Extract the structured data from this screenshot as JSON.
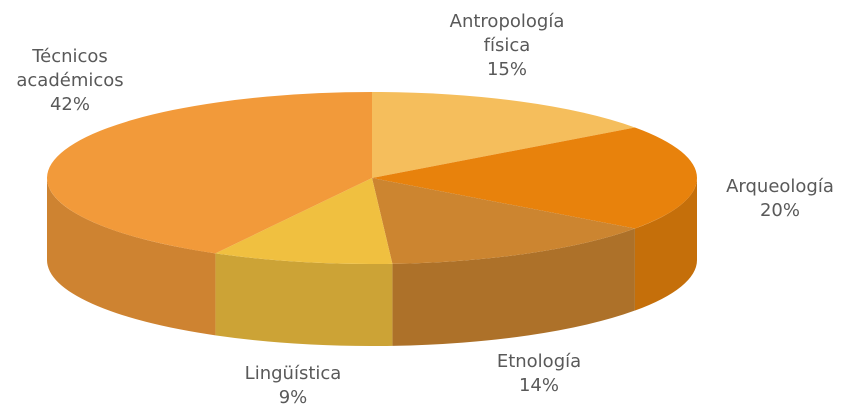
{
  "chart_data": {
    "type": "pie",
    "three_d": true,
    "categories": [
      "Antropología física",
      "Arqueología",
      "Etnología",
      "Lingüística",
      "Técnicos académicos"
    ],
    "values": [
      15,
      20,
      14,
      9,
      42
    ],
    "value_labels": [
      "15%",
      "20%",
      "14%",
      "9%",
      "42%"
    ],
    "colors": [
      "#f5be5c",
      "#e8820c",
      "#cc8530",
      "#f0c040",
      "#f29a3a"
    ]
  }
}
